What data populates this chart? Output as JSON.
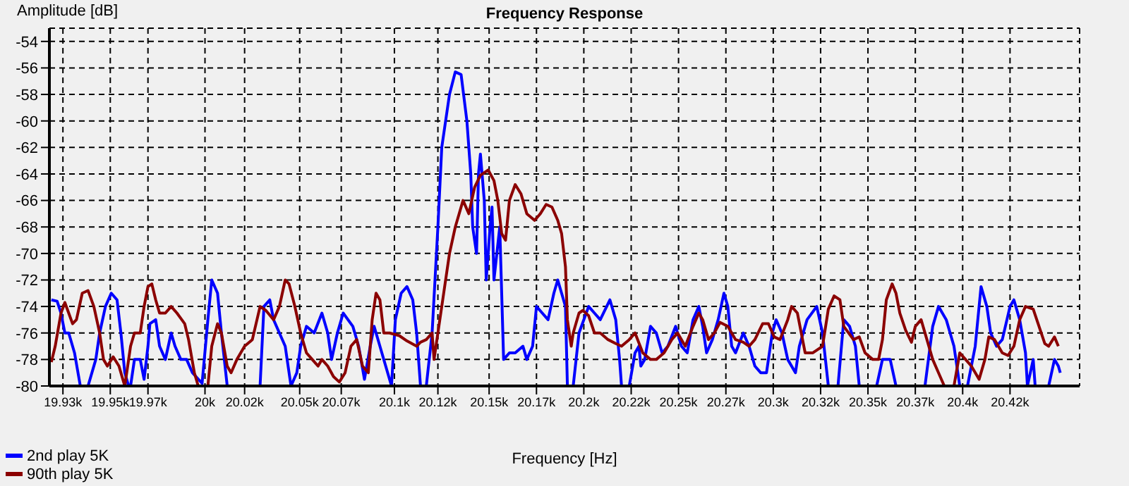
{
  "chart_data": {
    "type": "line",
    "title": "Frequency Response",
    "xlabel": "Frequency [Hz]",
    "ylabel": "Amplitude [dB]",
    "xlim": [
      19923,
      20456
    ],
    "ylim": [
      -80,
      -53
    ],
    "xticks": [
      {
        "value": 19930,
        "label": "19.93k"
      },
      {
        "value": 19954.5,
        "label": "19.95k"
      },
      {
        "value": 19974,
        "label": "19.97k"
      },
      {
        "value": 20003.5,
        "label": "20k"
      },
      {
        "value": 20024,
        "label": "20.02k"
      },
      {
        "value": 20052.5,
        "label": "20.05k"
      },
      {
        "value": 20074,
        "label": "20.07k"
      },
      {
        "value": 20101.5,
        "label": "20.1k"
      },
      {
        "value": 20124,
        "label": "20.12k"
      },
      {
        "value": 20150.5,
        "label": "20.15k"
      },
      {
        "value": 20175,
        "label": "20.17k"
      },
      {
        "value": 20199.5,
        "label": "20.2k"
      },
      {
        "value": 20224,
        "label": "20.22k"
      },
      {
        "value": 20248.5,
        "label": "20.25k"
      },
      {
        "value": 20273,
        "label": "20.27k"
      },
      {
        "value": 20297.5,
        "label": "20.3k"
      },
      {
        "value": 20322,
        "label": "20.32k"
      },
      {
        "value": 20346.5,
        "label": "20.35k"
      },
      {
        "value": 20371,
        "label": "20.37k"
      },
      {
        "value": 20395.5,
        "label": "20.4k"
      },
      {
        "value": 20420,
        "label": "20.42k"
      }
    ],
    "yticks": [
      -80,
      -78,
      -76,
      -74,
      -72,
      -70,
      -68,
      -66,
      -64,
      -62,
      -60,
      -58,
      -56,
      -54
    ],
    "grid": true,
    "legend": "bottom left",
    "line_style": "solid",
    "series": [
      {
        "name": "2nd play 5K",
        "color": "#0000ff",
        "x": [
          19924,
          19927,
          19929,
          19931,
          19933,
          19936,
          19939,
          19943,
          19947,
          19949,
          19952,
          19955,
          19958,
          19960,
          19962,
          19964,
          19965,
          19967,
          19970,
          19972,
          19974,
          19975,
          19978,
          19980,
          19983,
          19986,
          19988,
          19991,
          19994,
          19997,
          20002,
          20005,
          20007,
          20010,
          20012,
          20015,
          20032,
          20034,
          20037,
          20039,
          20042,
          20045,
          20048,
          20051,
          20053,
          20056,
          20060,
          20064,
          20067,
          20069,
          20072,
          20075,
          20080,
          20083,
          20086,
          20089,
          20091,
          20094,
          20100,
          20102,
          20105,
          20108,
          20111,
          20113,
          20115,
          20118,
          20121,
          20124,
          20126,
          20130,
          20133,
          20136,
          20139,
          20141,
          20142,
          20144,
          20145,
          20146,
          20148,
          20149,
          20151,
          20152,
          20153,
          20156,
          20158,
          20161,
          20164,
          20168,
          20170,
          20173,
          20175,
          20178,
          20181,
          20184,
          20186,
          20188,
          20190,
          20191,
          20194,
          20197,
          20202,
          20205,
          20208,
          20213,
          20216,
          20218,
          20219,
          20223,
          20226,
          20228,
          20229,
          20231,
          20234,
          20237,
          20240,
          20243,
          20247,
          20250,
          20253,
          20256,
          20259,
          20261,
          20263,
          20266,
          20269,
          20272,
          20274,
          20276,
          20278,
          20282,
          20285,
          20288,
          20291,
          20294,
          20297,
          20299,
          20302,
          20305,
          20309,
          20311,
          20315,
          20320,
          20323,
          20326,
          20331,
          20334,
          20337,
          20340,
          20342,
          20351,
          20354,
          20358,
          20361,
          20376,
          20380,
          20383,
          20387,
          20391,
          20394,
          20398,
          20402,
          20404,
          20405,
          20408,
          20410,
          20413,
          20416,
          20420,
          20422,
          20425,
          20428,
          20429,
          20432,
          20433,
          20440,
          20443,
          20445,
          20446
        ],
        "values": [
          -73.5,
          -73.6,
          -74.5,
          -76,
          -76,
          -77.5,
          -80,
          -80,
          -78,
          -76,
          -74,
          -73,
          -73.5,
          -76,
          -79,
          -80,
          -80,
          -78,
          -78,
          -79.5,
          -77,
          -75.3,
          -75,
          -77,
          -78,
          -76,
          -77,
          -78,
          -78,
          -79,
          -79.8,
          -75,
          -72,
          -73,
          -76,
          -80,
          -80,
          -74,
          -73.5,
          -75,
          -76,
          -77,
          -80,
          -79,
          -77,
          -75.5,
          -76,
          -74.5,
          -76,
          -78,
          -76,
          -74.5,
          -75.5,
          -77,
          -79.5,
          -77,
          -75.5,
          -77,
          -80,
          -75,
          -73,
          -72.5,
          -73.5,
          -76,
          -80,
          -80,
          -76,
          -68,
          -62,
          -58,
          -56.3,
          -56.5,
          -60,
          -64,
          -68,
          -70,
          -64,
          -62.5,
          -66,
          -72,
          -68,
          -66.5,
          -72,
          -68,
          -78,
          -77.5,
          -77.5,
          -77,
          -78,
          -77,
          -74,
          -74.5,
          -75,
          -73,
          -72,
          -73,
          -74,
          -80,
          -80,
          -76,
          -74,
          -74.5,
          -75,
          -73.5,
          -75,
          -78,
          -80,
          -80,
          -77.5,
          -77,
          -78.5,
          -78,
          -75.5,
          -76,
          -77.5,
          -77,
          -75.5,
          -77,
          -77.5,
          -75,
          -74,
          -75.5,
          -77.5,
          -76.5,
          -75,
          -73,
          -74,
          -77,
          -77.5,
          -76,
          -77,
          -78.5,
          -79,
          -79,
          -76,
          -75,
          -76,
          -78,
          -79,
          -77,
          -75,
          -74,
          -76,
          -80,
          -80,
          -75,
          -75.5,
          -77,
          -80,
          -80,
          -78,
          -78,
          -80,
          -80,
          -75.5,
          -74,
          -75,
          -77,
          -80,
          -80,
          -77,
          -74,
          -72.5,
          -74,
          -76,
          -77,
          -76.5,
          -74,
          -73.5,
          -75,
          -77.5,
          -80,
          -78,
          -80,
          -80,
          -78,
          -78.5,
          -79
        ]
      },
      {
        "name": "90th play 5K",
        "color": "#8b0000",
        "x": [
          19924,
          19926,
          19929,
          19931,
          19933,
          19935,
          19937,
          19940,
          19943,
          19946,
          19949,
          19951,
          19953,
          19956,
          19959,
          19961,
          19962,
          19964,
          19965,
          19967,
          19970,
          19972,
          19974,
          19976,
          19978,
          19980,
          19983,
          19986,
          19989,
          19993,
          19995,
          19998,
          20000,
          20005,
          20007,
          20010,
          20012,
          20015,
          20017,
          20020,
          20024,
          20028,
          20032,
          20035,
          20039,
          20042,
          20045,
          20047,
          20050,
          20053,
          20056,
          20059,
          20062,
          20064,
          20067,
          20070,
          20073,
          20076,
          20079,
          20082,
          20085,
          20088,
          20090,
          20092,
          20094,
          20096,
          20099,
          20104,
          20108,
          20113,
          20115,
          20118,
          20121,
          20122,
          20124,
          20127,
          20130,
          20133,
          20137,
          20140,
          20143,
          20146,
          20150,
          20153,
          20155,
          20157,
          20159,
          20161,
          20164,
          20167,
          20170,
          20174,
          20177,
          20180,
          20183,
          20186,
          20188,
          20190,
          20191,
          20193,
          20194,
          20197,
          20199,
          20202,
          20205,
          20208,
          20212,
          20216,
          20219,
          20223,
          20226,
          20230,
          20234,
          20237,
          20241,
          20245,
          20248,
          20252,
          20256,
          20259,
          20261,
          20264,
          20267,
          20270,
          20274,
          20278,
          20282,
          20285,
          20288,
          20292,
          20295,
          20298,
          20301,
          20305,
          20307,
          20310,
          20314,
          20318,
          20323,
          20326,
          20329,
          20332,
          20334,
          20339,
          20342,
          20345,
          20349,
          20352,
          20354,
          20356,
          20359,
          20361,
          20363,
          20366,
          20369,
          20371,
          20374,
          20377,
          20380,
          20383,
          20386,
          20391,
          20394,
          20397,
          20400,
          20404,
          20407,
          20409,
          20412,
          20416,
          20419,
          20422,
          20425,
          20428,
          20432,
          20435,
          20438,
          20440,
          20443,
          20445
        ],
        "values": [
          -78.2,
          -77,
          -74.5,
          -73.7,
          -74.5,
          -75.3,
          -75,
          -73,
          -72.8,
          -74,
          -76,
          -78,
          -78.5,
          -77.8,
          -78.5,
          -79.5,
          -80,
          -78,
          -77,
          -76,
          -76,
          -74,
          -72.5,
          -72.3,
          -73.5,
          -74.5,
          -74.5,
          -74,
          -74.5,
          -75.3,
          -76.5,
          -79,
          -80,
          -80,
          -77,
          -75.3,
          -76,
          -78.5,
          -79,
          -78,
          -77,
          -76.5,
          -74,
          -74.3,
          -75,
          -74,
          -72,
          -72.3,
          -74,
          -76,
          -77.5,
          -78,
          -78.5,
          -78,
          -78.5,
          -79.3,
          -79.7,
          -79,
          -77,
          -76.5,
          -78.5,
          -79,
          -75,
          -73,
          -73.5,
          -76,
          -76,
          -76.2,
          -76.6,
          -77,
          -76.7,
          -76.5,
          -76,
          -78,
          -76,
          -73,
          -70,
          -68,
          -66,
          -67,
          -65,
          -64.1,
          -63.7,
          -64.5,
          -66,
          -68.5,
          -69,
          -66,
          -64.8,
          -65.5,
          -67,
          -67.5,
          -67,
          -66.3,
          -66.5,
          -67.5,
          -68.5,
          -71,
          -75,
          -77,
          -76,
          -74.5,
          -74.3,
          -74.7,
          -76,
          -76,
          -76.5,
          -76.8,
          -77,
          -76.5,
          -76,
          -77.5,
          -78,
          -78,
          -77.5,
          -76.5,
          -76,
          -77,
          -75.5,
          -74.5,
          -75,
          -76.5,
          -76,
          -75.2,
          -75.5,
          -76.5,
          -76.7,
          -77,
          -76.5,
          -75.3,
          -75.3,
          -76.3,
          -76.5,
          -75,
          -74,
          -74.5,
          -77.5,
          -77.5,
          -77,
          -74.2,
          -73.2,
          -73.5,
          -75.5,
          -76.5,
          -76.3,
          -77.5,
          -78,
          -78,
          -76.5,
          -73.5,
          -72.3,
          -73,
          -74.5,
          -75.8,
          -76.7,
          -75.5,
          -75,
          -76.5,
          -78,
          -79,
          -80,
          -80,
          -77.5,
          -78,
          -78.5,
          -79.5,
          -78,
          -76.3,
          -76.5,
          -77.5,
          -77.7,
          -77,
          -75,
          -74,
          -74.2,
          -75.5,
          -76.8,
          -77,
          -76.3,
          -77
        ]
      }
    ]
  }
}
